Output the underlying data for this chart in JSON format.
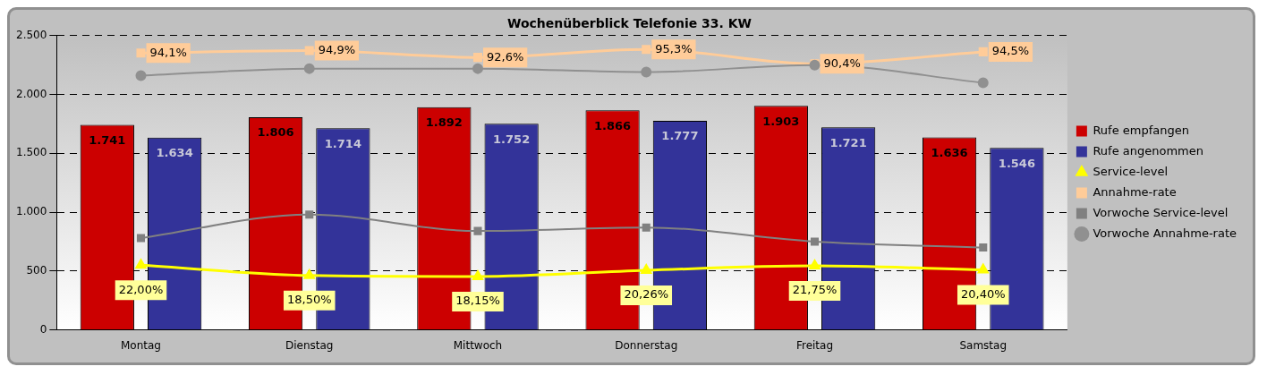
{
  "chart_data": {
    "type": "bar",
    "title": "Wochenüberblick Telefonie 33. KW",
    "categories": [
      "Montag",
      "Dienstag",
      "Mittwoch",
      "Donnerstag",
      "Freitag",
      "Samstag"
    ],
    "series": [
      {
        "name": "Rufe empfangen",
        "color": "#cc0000",
        "values": [
          1741,
          1806,
          1892,
          1866,
          1903,
          1636
        ],
        "value_labels": [
          "1.741",
          "1.806",
          "1.892",
          "1.866",
          "1.903",
          "1.636"
        ]
      },
      {
        "name": "Rufe angenommen",
        "color": "#333399",
        "values": [
          1634,
          1714,
          1752,
          1777,
          1721,
          1546
        ],
        "value_labels": [
          "1.634",
          "1.714",
          "1.752",
          "1.777",
          "1.721",
          "1.546"
        ]
      },
      {
        "name": "Service-level",
        "type": "line",
        "axis": "y2",
        "marker": "triangle",
        "color": "#ffff00",
        "values": [
          22.0,
          18.5,
          18.15,
          20.26,
          21.75,
          20.4
        ],
        "value_labels": [
          "22,00%",
          "18,50%",
          "18,15%",
          "20,26%",
          "21,75%",
          "20,40%"
        ]
      },
      {
        "name": "Annahme-rate",
        "type": "line",
        "axis": "y2",
        "marker": "square",
        "color": "#ffcc99",
        "values": [
          94.1,
          94.9,
          92.6,
          95.3,
          90.4,
          94.5
        ],
        "value_labels": [
          "94,1%",
          "94,9%",
          "92,6%",
          "95,3%",
          "90,4%",
          "94,5%"
        ]
      },
      {
        "name": "Vorwoche Service-level",
        "type": "line",
        "marker": "square",
        "color": "#808080",
        "values": [
          780,
          980,
          840,
          870,
          750,
          700
        ]
      },
      {
        "name": "Vorwoche Annahme-rate",
        "type": "line",
        "marker": "circle",
        "color": "#909090",
        "values": [
          2160,
          2220,
          2220,
          2190,
          2250,
          2100
        ]
      }
    ],
    "ylim": [
      0,
      2500
    ],
    "yticks": [
      {
        "value": 0,
        "label": "0"
      },
      {
        "value": 500,
        "label": "500"
      },
      {
        "value": 1000,
        "label": "1.000"
      },
      {
        "value": 1500,
        "label": "1.500"
      },
      {
        "value": 2000,
        "label": "2.000"
      },
      {
        "value": 2500,
        "label": "2.500"
      }
    ],
    "y2lim": [
      0,
      100
    ],
    "grid": "y",
    "legend": "right"
  }
}
